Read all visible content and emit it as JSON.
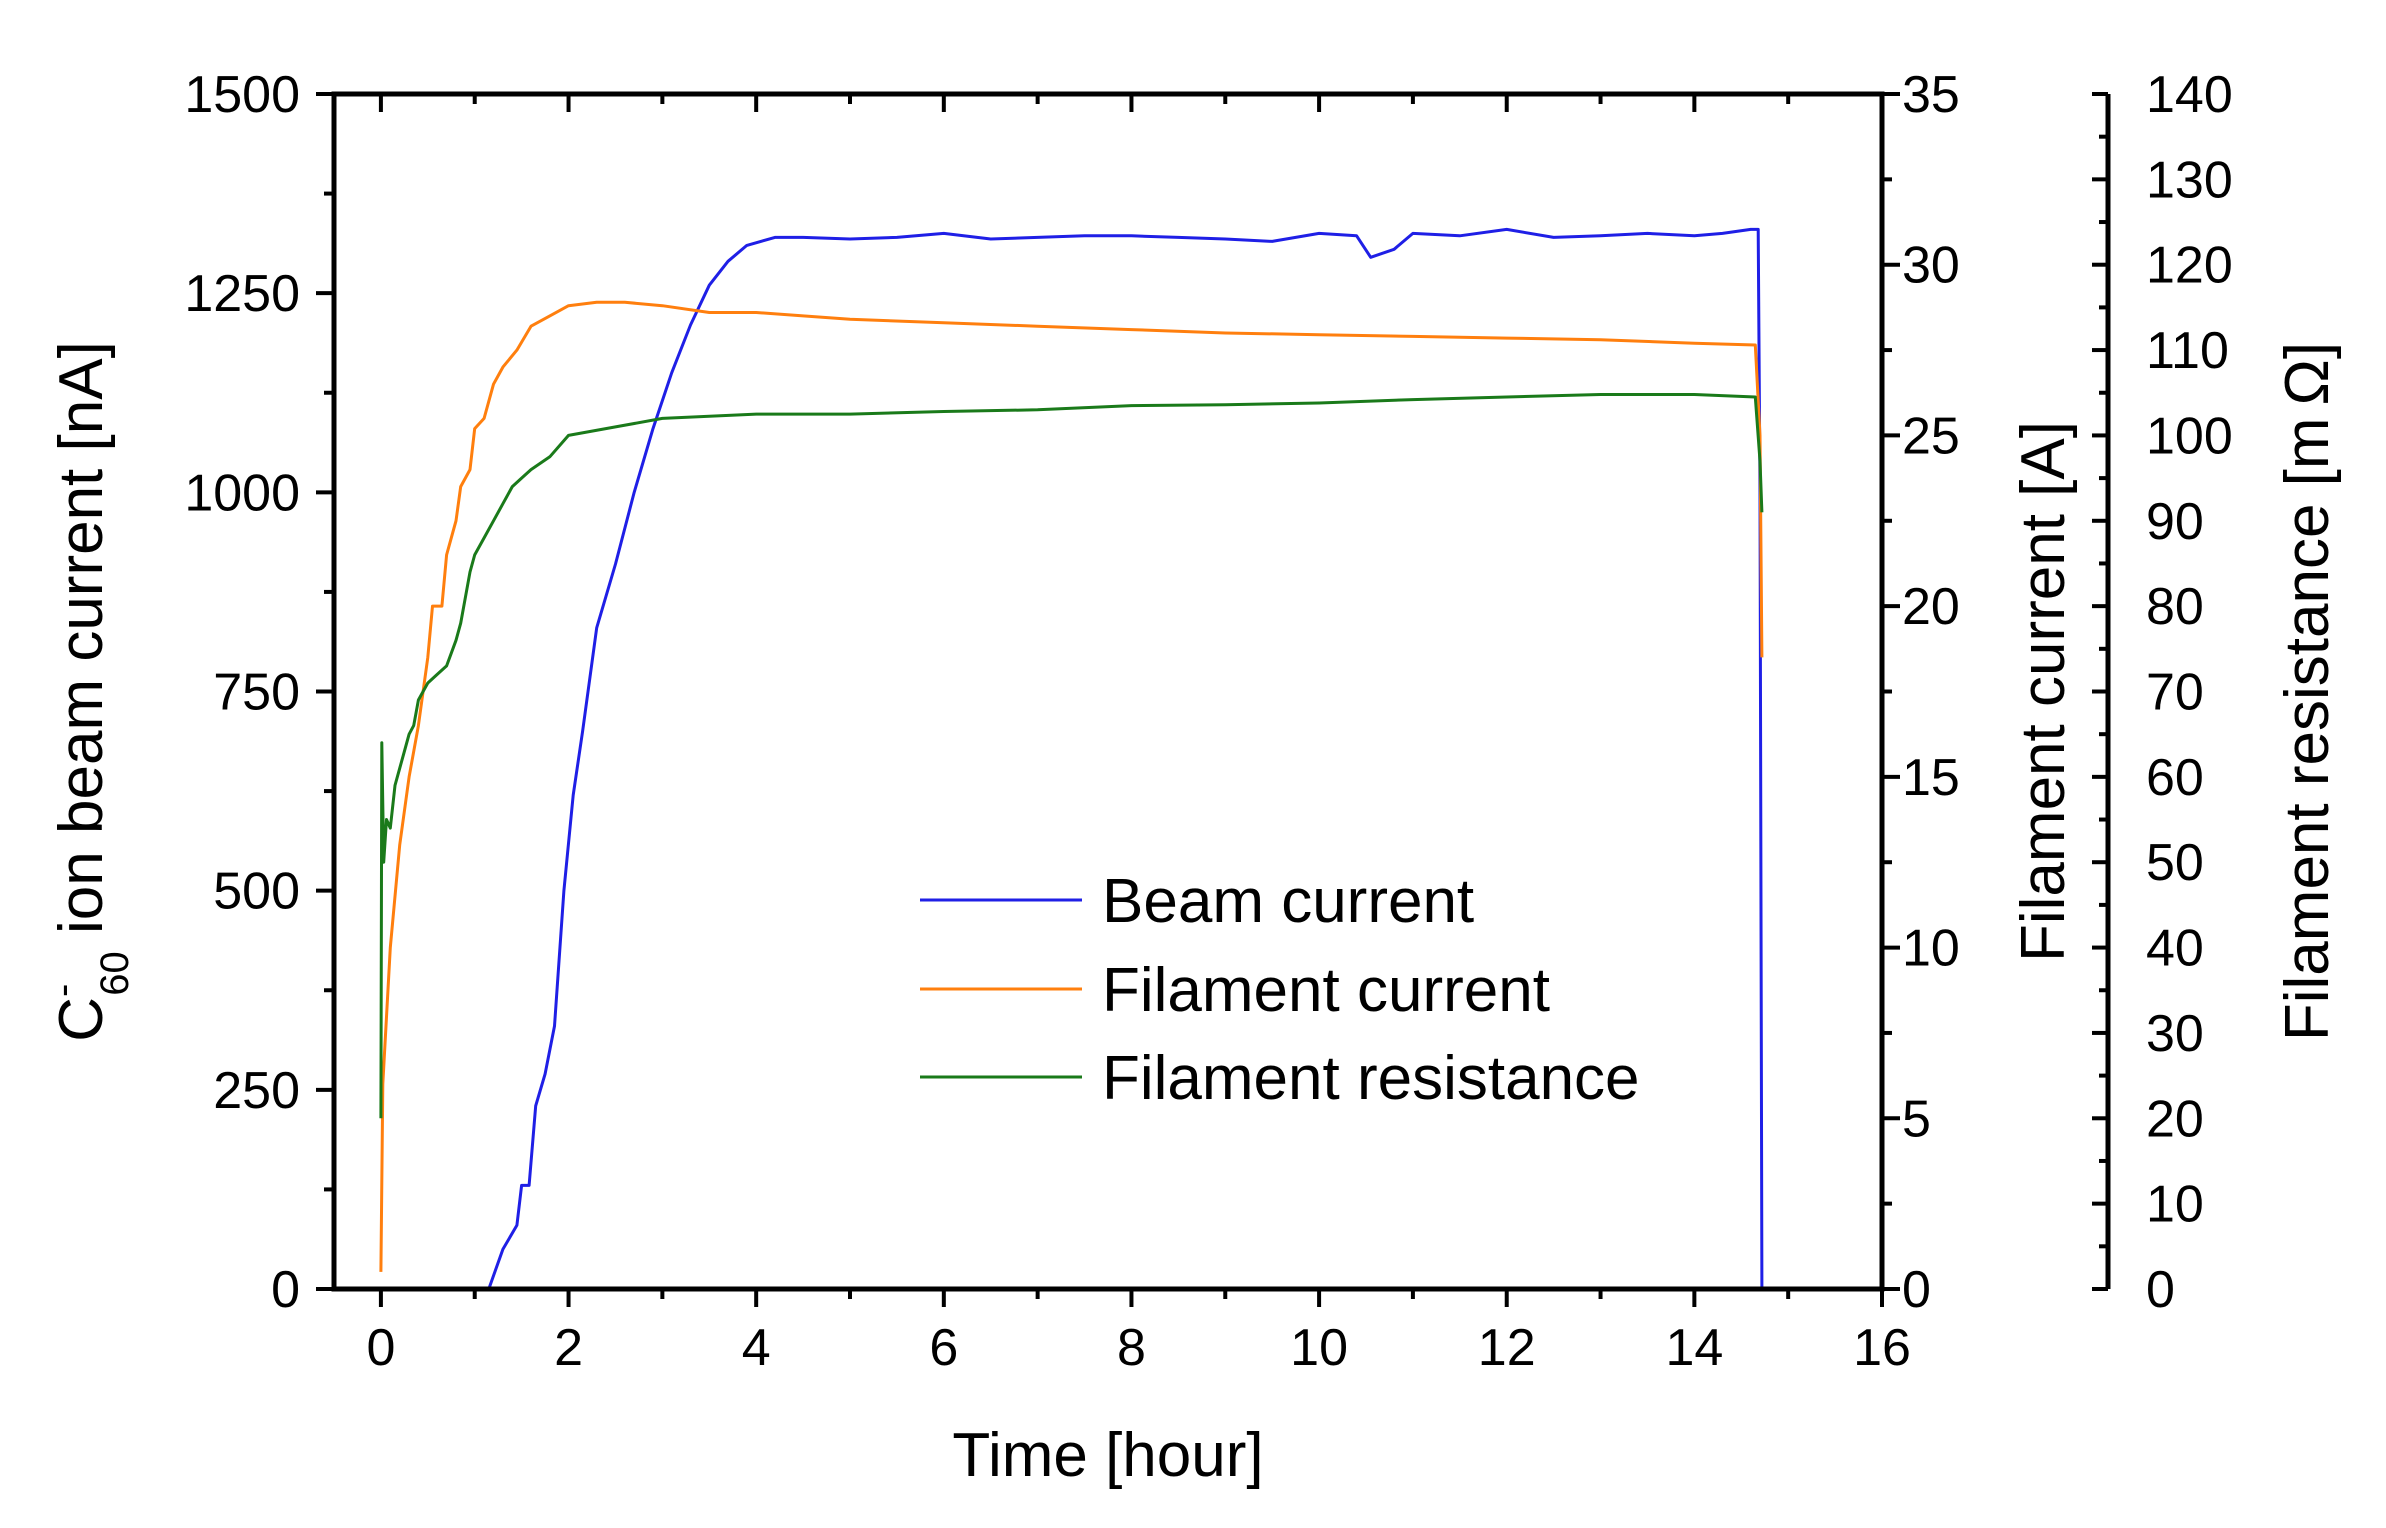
{
  "chart_data": {
    "type": "line",
    "xlabel": "Time [hour]",
    "xlim": [
      -0.5,
      16
    ],
    "xticks": [
      0,
      2,
      4,
      6,
      8,
      10,
      12,
      14,
      16
    ],
    "axes": {
      "left": {
        "label_parts": [
          "C",
          "-",
          "60",
          " ion beam current [nA]"
        ],
        "ylim": [
          0,
          1500
        ],
        "ticks": [
          0,
          250,
          500,
          750,
          1000,
          1250,
          1500
        ]
      },
      "right1": {
        "label": "Filament current [A]",
        "ylim": [
          0,
          35
        ],
        "ticks": [
          0,
          5,
          10,
          15,
          20,
          25,
          30,
          35
        ]
      },
      "right2": {
        "label_parts": [
          "Filament resistance [m",
          "Ω",
          "]"
        ],
        "ylim": [
          0,
          140
        ],
        "ticks": [
          0,
          10,
          20,
          30,
          40,
          50,
          60,
          70,
          80,
          90,
          100,
          110,
          120,
          130,
          140
        ]
      }
    },
    "legend_position": "center",
    "series": [
      {
        "name": "Beam current",
        "axis": "left",
        "color": "#1f1fe6",
        "points": [
          [
            1.15,
            0
          ],
          [
            1.3,
            50
          ],
          [
            1.45,
            80
          ],
          [
            1.5,
            130
          ],
          [
            1.58,
            130
          ],
          [
            1.65,
            230
          ],
          [
            1.75,
            270
          ],
          [
            1.85,
            330
          ],
          [
            1.95,
            500
          ],
          [
            2.05,
            620
          ],
          [
            2.15,
            700
          ],
          [
            2.3,
            830
          ],
          [
            2.5,
            910
          ],
          [
            2.7,
            1000
          ],
          [
            2.9,
            1080
          ],
          [
            3.1,
            1150
          ],
          [
            3.3,
            1210
          ],
          [
            3.5,
            1260
          ],
          [
            3.7,
            1290
          ],
          [
            3.9,
            1310
          ],
          [
            4.2,
            1320
          ],
          [
            4.5,
            1320
          ],
          [
            5.0,
            1318
          ],
          [
            5.5,
            1320
          ],
          [
            6.0,
            1325
          ],
          [
            6.5,
            1318
          ],
          [
            7.0,
            1320
          ],
          [
            7.5,
            1322
          ],
          [
            8.0,
            1322
          ],
          [
            8.5,
            1320
          ],
          [
            9.0,
            1318
          ],
          [
            9.5,
            1315
          ],
          [
            10.0,
            1325
          ],
          [
            10.4,
            1322
          ],
          [
            10.55,
            1295
          ],
          [
            10.8,
            1305
          ],
          [
            11.0,
            1325
          ],
          [
            11.5,
            1322
          ],
          [
            12.0,
            1330
          ],
          [
            12.5,
            1320
          ],
          [
            13.0,
            1322
          ],
          [
            13.5,
            1325
          ],
          [
            14.0,
            1322
          ],
          [
            14.3,
            1325
          ],
          [
            14.6,
            1330
          ],
          [
            14.68,
            1330
          ],
          [
            14.7,
            1000
          ],
          [
            14.72,
            0
          ]
        ]
      },
      {
        "name": "Filament current",
        "axis": "right1",
        "color": "#ff7f0e",
        "points": [
          [
            0.0,
            0.5
          ],
          [
            0.02,
            6
          ],
          [
            0.1,
            10
          ],
          [
            0.2,
            13
          ],
          [
            0.3,
            15
          ],
          [
            0.4,
            16.5
          ],
          [
            0.5,
            18.5
          ],
          [
            0.55,
            20
          ],
          [
            0.65,
            20
          ],
          [
            0.7,
            21.5
          ],
          [
            0.8,
            22.5
          ],
          [
            0.85,
            23.5
          ],
          [
            0.95,
            24
          ],
          [
            1.0,
            25.2
          ],
          [
            1.1,
            25.5
          ],
          [
            1.2,
            26.5
          ],
          [
            1.3,
            27
          ],
          [
            1.45,
            27.5
          ],
          [
            1.6,
            28.2
          ],
          [
            1.8,
            28.5
          ],
          [
            2.0,
            28.8
          ],
          [
            2.3,
            28.9
          ],
          [
            2.6,
            28.9
          ],
          [
            3.0,
            28.8
          ],
          [
            3.5,
            28.6
          ],
          [
            4.0,
            28.6
          ],
          [
            4.5,
            28.5
          ],
          [
            5.0,
            28.4
          ],
          [
            6.0,
            28.3
          ],
          [
            7.0,
            28.2
          ],
          [
            8.0,
            28.1
          ],
          [
            9.0,
            28.0
          ],
          [
            10.0,
            27.95
          ],
          [
            11.0,
            27.9
          ],
          [
            12.0,
            27.85
          ],
          [
            13.0,
            27.8
          ],
          [
            14.0,
            27.7
          ],
          [
            14.65,
            27.65
          ],
          [
            14.7,
            25
          ],
          [
            14.72,
            18.5
          ]
        ]
      },
      {
        "name": "Filament resistance",
        "axis": "right2",
        "color": "#1a7a1a",
        "points": [
          [
            0.0,
            20
          ],
          [
            0.01,
            64
          ],
          [
            0.03,
            50
          ],
          [
            0.06,
            55
          ],
          [
            0.1,
            54
          ],
          [
            0.15,
            59
          ],
          [
            0.2,
            61
          ],
          [
            0.25,
            63
          ],
          [
            0.3,
            65
          ],
          [
            0.35,
            66
          ],
          [
            0.4,
            69
          ],
          [
            0.45,
            70
          ],
          [
            0.5,
            71
          ],
          [
            0.6,
            72
          ],
          [
            0.7,
            73
          ],
          [
            0.8,
            76
          ],
          [
            0.85,
            78
          ],
          [
            0.95,
            84
          ],
          [
            1.0,
            86
          ],
          [
            1.1,
            88
          ],
          [
            1.2,
            90
          ],
          [
            1.3,
            92
          ],
          [
            1.4,
            94
          ],
          [
            1.5,
            95
          ],
          [
            1.6,
            96
          ],
          [
            1.8,
            97.5
          ],
          [
            2.0,
            100
          ],
          [
            2.5,
            101
          ],
          [
            3.0,
            102
          ],
          [
            4.0,
            102.5
          ],
          [
            5.0,
            102.5
          ],
          [
            6.0,
            102.8
          ],
          [
            7.0,
            103
          ],
          [
            8.0,
            103.5
          ],
          [
            9.0,
            103.6
          ],
          [
            10.0,
            103.8
          ],
          [
            11.0,
            104.2
          ],
          [
            12.0,
            104.5
          ],
          [
            13.0,
            104.8
          ],
          [
            14.0,
            104.8
          ],
          [
            14.65,
            104.5
          ],
          [
            14.7,
            97
          ],
          [
            14.72,
            91
          ]
        ]
      }
    ]
  }
}
